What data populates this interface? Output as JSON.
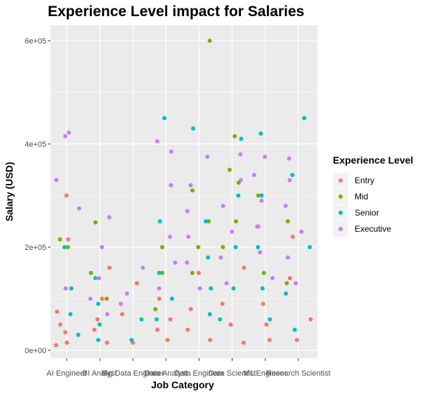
{
  "chart_data": {
    "type": "scatter",
    "title": "Experience Level impact for Salaries",
    "xlabel": "Job Category",
    "ylabel": "Salary (USD)",
    "categories": [
      "AI Engineer",
      "BI Analyst",
      "Big Data Engineer",
      "Data Analyst",
      "Data Engineer",
      "Data Scientist",
      "ML Engineer",
      "Research Scientist"
    ],
    "y_ticks": [
      0,
      200000,
      400000,
      600000
    ],
    "y_tick_labels": [
      "0e+00",
      "2e+05",
      "4e+05",
      "6e+05"
    ],
    "ylim": [
      -15000,
      630000
    ],
    "grid": true,
    "legend": {
      "title": "Experience Level",
      "placement": "right",
      "entries": [
        "Entry",
        "Mid",
        "Senior",
        "Executive"
      ]
    },
    "colors": {
      "Entry": "#f8766d",
      "Mid": "#7cae00",
      "Senior": "#00bfc4",
      "Executive": "#c77cff",
      "panel": "#ebebeb",
      "grid": "#ffffff"
    },
    "series": [
      {
        "name": "Entry",
        "points": [
          {
            "x": "AI Engineer",
            "y": 300000
          },
          {
            "x": "AI Engineer",
            "y": 215000
          },
          {
            "x": "AI Engineer",
            "y": 75000
          },
          {
            "x": "AI Engineer",
            "y": 50000
          },
          {
            "x": "AI Engineer",
            "y": 35000
          },
          {
            "x": "AI Engineer",
            "y": 15000
          },
          {
            "x": "AI Engineer",
            "y": 10000
          },
          {
            "x": "BI Analyst",
            "y": 160000
          },
          {
            "x": "BI Analyst",
            "y": 100000
          },
          {
            "x": "BI Analyst",
            "y": 60000
          },
          {
            "x": "BI Analyst",
            "y": 40000
          },
          {
            "x": "BI Analyst",
            "y": 15000
          },
          {
            "x": "Big Data Engineer",
            "y": 130000
          },
          {
            "x": "Big Data Engineer",
            "y": 70000
          },
          {
            "x": "Big Data Engineer",
            "y": 15000
          },
          {
            "x": "Data Analyst",
            "y": 100000
          },
          {
            "x": "Data Analyst",
            "y": 60000
          },
          {
            "x": "Data Analyst",
            "y": 40000
          },
          {
            "x": "Data Analyst",
            "y": 20000
          },
          {
            "x": "Data Engineer",
            "y": 150000
          },
          {
            "x": "Data Engineer",
            "y": 80000
          },
          {
            "x": "Data Engineer",
            "y": 40000
          },
          {
            "x": "Data Engineer",
            "y": 20000
          },
          {
            "x": "Data Scientist",
            "y": 160000
          },
          {
            "x": "Data Scientist",
            "y": 90000
          },
          {
            "x": "Data Scientist",
            "y": 50000
          },
          {
            "x": "Data Scientist",
            "y": 15000
          },
          {
            "x": "ML Engineer",
            "y": 240000
          },
          {
            "x": "ML Engineer",
            "y": 90000
          },
          {
            "x": "ML Engineer",
            "y": 50000
          },
          {
            "x": "ML Engineer",
            "y": 20000
          },
          {
            "x": "Research Scientist",
            "y": 220000
          },
          {
            "x": "Research Scientist",
            "y": 140000
          },
          {
            "x": "Research Scientist",
            "y": 60000
          },
          {
            "x": "Research Scientist",
            "y": 20000
          }
        ]
      },
      {
        "name": "Mid",
        "points": [
          {
            "x": "AI Engineer",
            "y": 215000
          },
          {
            "x": "AI Engineer",
            "y": 200000
          },
          {
            "x": "BI Analyst",
            "y": 248000
          },
          {
            "x": "BI Analyst",
            "y": 150000
          },
          {
            "x": "BI Analyst",
            "y": 100000
          },
          {
            "x": "Data Analyst",
            "y": 200000
          },
          {
            "x": "Data Analyst",
            "y": 150000
          },
          {
            "x": "Data Analyst",
            "y": 80000
          },
          {
            "x": "Data Engineer",
            "y": 600000
          },
          {
            "x": "Data Engineer",
            "y": 310000
          },
          {
            "x": "Data Engineer",
            "y": 250000
          },
          {
            "x": "Data Engineer",
            "y": 200000
          },
          {
            "x": "Data Engineer",
            "y": 150000
          },
          {
            "x": "Data Scientist",
            "y": 415000
          },
          {
            "x": "Data Scientist",
            "y": 350000
          },
          {
            "x": "Data Scientist",
            "y": 325000
          },
          {
            "x": "Data Scientist",
            "y": 250000
          },
          {
            "x": "Data Scientist",
            "y": 200000
          },
          {
            "x": "ML Engineer",
            "y": 300000
          },
          {
            "x": "ML Engineer",
            "y": 150000
          },
          {
            "x": "Research Scientist",
            "y": 250000
          },
          {
            "x": "Research Scientist",
            "y": 130000
          }
        ]
      },
      {
        "name": "Senior",
        "points": [
          {
            "x": "AI Engineer",
            "y": 200000
          },
          {
            "x": "AI Engineer",
            "y": 120000
          },
          {
            "x": "AI Engineer",
            "y": 70000
          },
          {
            "x": "AI Engineer",
            "y": 30000
          },
          {
            "x": "BI Analyst",
            "y": 140000
          },
          {
            "x": "BI Analyst",
            "y": 90000
          },
          {
            "x": "BI Analyst",
            "y": 50000
          },
          {
            "x": "BI Analyst",
            "y": 20000
          },
          {
            "x": "Big Data Engineer",
            "y": 60000
          },
          {
            "x": "Big Data Engineer",
            "y": 20000
          },
          {
            "x": "Data Analyst",
            "y": 450000
          },
          {
            "x": "Data Analyst",
            "y": 250000
          },
          {
            "x": "Data Analyst",
            "y": 150000
          },
          {
            "x": "Data Analyst",
            "y": 100000
          },
          {
            "x": "Data Analyst",
            "y": 60000
          },
          {
            "x": "Data Engineer",
            "y": 430000
          },
          {
            "x": "Data Engineer",
            "y": 250000
          },
          {
            "x": "Data Engineer",
            "y": 180000
          },
          {
            "x": "Data Engineer",
            "y": 120000
          },
          {
            "x": "Data Engineer",
            "y": 70000
          },
          {
            "x": "Data Scientist",
            "y": 410000
          },
          {
            "x": "Data Scientist",
            "y": 300000
          },
          {
            "x": "Data Scientist",
            "y": 200000
          },
          {
            "x": "Data Scientist",
            "y": 120000
          },
          {
            "x": "Data Scientist",
            "y": 60000
          },
          {
            "x": "ML Engineer",
            "y": 420000
          },
          {
            "x": "ML Engineer",
            "y": 300000
          },
          {
            "x": "ML Engineer",
            "y": 200000
          },
          {
            "x": "ML Engineer",
            "y": 120000
          },
          {
            "x": "ML Engineer",
            "y": 60000
          },
          {
            "x": "Research Scientist",
            "y": 450000
          },
          {
            "x": "Research Scientist",
            "y": 340000
          },
          {
            "x": "Research Scientist",
            "y": 200000
          },
          {
            "x": "Research Scientist",
            "y": 110000
          },
          {
            "x": "Research Scientist",
            "y": 40000
          }
        ]
      },
      {
        "name": "Executive",
        "points": [
          {
            "x": "AI Engineer",
            "y": 422000
          },
          {
            "x": "AI Engineer",
            "y": 415000
          },
          {
            "x": "AI Engineer",
            "y": 330000
          },
          {
            "x": "AI Engineer",
            "y": 275000
          },
          {
            "x": "AI Engineer",
            "y": 120000
          },
          {
            "x": "BI Analyst",
            "y": 258000
          },
          {
            "x": "BI Analyst",
            "y": 200000
          },
          {
            "x": "BI Analyst",
            "y": 140000
          },
          {
            "x": "BI Analyst",
            "y": 100000
          },
          {
            "x": "BI Analyst",
            "y": 70000
          },
          {
            "x": "Big Data Engineer",
            "y": 160000
          },
          {
            "x": "Big Data Engineer",
            "y": 110000
          },
          {
            "x": "Big Data Engineer",
            "y": 90000
          },
          {
            "x": "Data Analyst",
            "y": 405000
          },
          {
            "x": "Data Analyst",
            "y": 385000
          },
          {
            "x": "Data Analyst",
            "y": 320000
          },
          {
            "x": "Data Analyst",
            "y": 220000
          },
          {
            "x": "Data Analyst",
            "y": 170000
          },
          {
            "x": "Data Analyst",
            "y": 120000
          },
          {
            "x": "Data Engineer",
            "y": 375000
          },
          {
            "x": "Data Engineer",
            "y": 320000
          },
          {
            "x": "Data Engineer",
            "y": 270000
          },
          {
            "x": "Data Engineer",
            "y": 220000
          },
          {
            "x": "Data Engineer",
            "y": 170000
          },
          {
            "x": "Data Engineer",
            "y": 120000
          },
          {
            "x": "Data Scientist",
            "y": 380000
          },
          {
            "x": "Data Scientist",
            "y": 330000
          },
          {
            "x": "Data Scientist",
            "y": 280000
          },
          {
            "x": "Data Scientist",
            "y": 230000
          },
          {
            "x": "Data Scientist",
            "y": 180000
          },
          {
            "x": "Data Scientist",
            "y": 130000
          },
          {
            "x": "ML Engineer",
            "y": 375000
          },
          {
            "x": "ML Engineer",
            "y": 340000
          },
          {
            "x": "ML Engineer",
            "y": 290000
          },
          {
            "x": "ML Engineer",
            "y": 240000
          },
          {
            "x": "ML Engineer",
            "y": 190000
          },
          {
            "x": "ML Engineer",
            "y": 140000
          },
          {
            "x": "Research Scientist",
            "y": 372000
          },
          {
            "x": "Research Scientist",
            "y": 330000
          },
          {
            "x": "Research Scientist",
            "y": 280000
          },
          {
            "x": "Research Scientist",
            "y": 230000
          },
          {
            "x": "Research Scientist",
            "y": 180000
          },
          {
            "x": "Research Scientist",
            "y": 130000
          }
        ]
      }
    ]
  }
}
